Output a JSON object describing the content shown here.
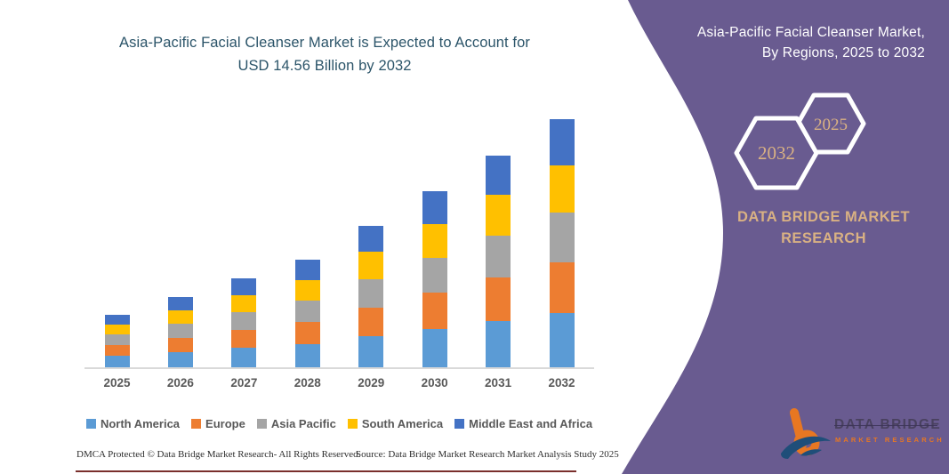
{
  "left_panel": {
    "title_line1": "Asia-Pacific Facial Cleanser Market is Expected to Account for",
    "title_line2": "USD 14.56 Billion by 2032",
    "footer_left": "DMCA Protected © Data Bridge Market Research-  All Rights Reserved.",
    "footer_right": "Source: Data Bridge Market Research  Market Analysis Study 2025"
  },
  "chart_data": {
    "type": "bar",
    "stacked": true,
    "title": "Asia-Pacific Facial Cleanser Market is Expected to Account for USD 14.56 Billion by 2032",
    "unit": "USD Billion",
    "grid": false,
    "legend_position": "bottom",
    "categories": [
      "2025",
      "2026",
      "2027",
      "2028",
      "2029",
      "2030",
      "2031",
      "2032"
    ],
    "series": [
      {
        "name": "North America",
        "color": "#5B9BD5",
        "values": [
          0.68,
          0.9,
          1.14,
          1.38,
          1.82,
          2.26,
          2.72,
          3.18
        ]
      },
      {
        "name": "Europe",
        "color": "#ED7D31",
        "values": [
          0.64,
          0.84,
          1.07,
          1.29,
          1.7,
          2.12,
          2.55,
          2.99
        ]
      },
      {
        "name": "Asia Pacific",
        "color": "#A5A5A5",
        "values": [
          0.6,
          0.82,
          1.04,
          1.26,
          1.66,
          2.07,
          2.48,
          2.91
        ]
      },
      {
        "name": "South America",
        "color": "#FFC000",
        "values": [
          0.58,
          0.79,
          1.0,
          1.21,
          1.59,
          1.98,
          2.38,
          2.79
        ]
      },
      {
        "name": "Middle East and Africa",
        "color": "#4472C4",
        "values": [
          0.58,
          0.77,
          0.97,
          1.17,
          1.53,
          1.9,
          2.29,
          2.69
        ]
      }
    ],
    "totals": [
      3.08,
      4.12,
      5.22,
      6.31,
      8.3,
      10.33,
      12.42,
      14.56
    ],
    "ylim": [
      0,
      15.3
    ]
  },
  "right_panel": {
    "title_line1": "Asia-Pacific Facial Cleanser Market,",
    "title_line2": "By Regions, 2025 to 2032",
    "hexagon_back_label": "2032",
    "hexagon_front_label": "2025",
    "brand_line1": "DATA BRIDGE MARKET",
    "brand_line2": "RESEARCH",
    "logo_wordmark": "DATA BRIDGE",
    "logo_subtitle": "MARKET RESEARCH",
    "colors": {
      "panel": "#695b90",
      "accent_text": "#d9b183",
      "logo_orange": "#e87722",
      "logo_blue": "#1f4e79"
    }
  }
}
